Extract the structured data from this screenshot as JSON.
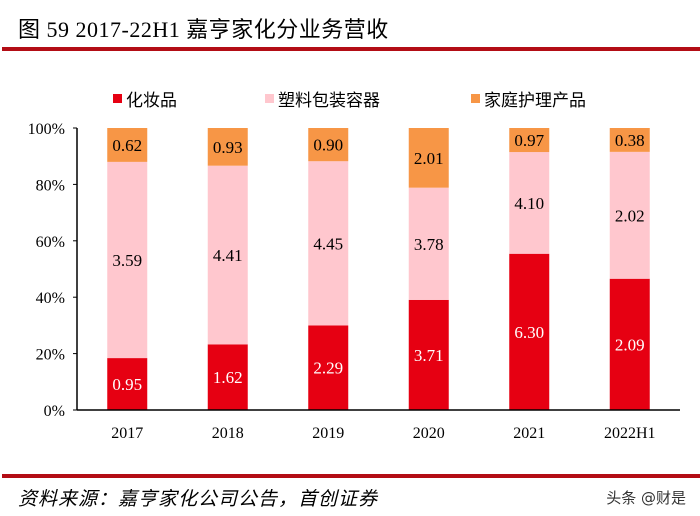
{
  "header": {
    "title": "图  59 2017-22H1 嘉亨家化分业务营收"
  },
  "footer": {
    "source": "资料来源：嘉亨家化公司公告，首创证券",
    "watermark": "头条 @财是"
  },
  "colors": {
    "cosmetics": "#e60012",
    "plastic": "#ffc7ce",
    "household": "#f79646",
    "rule": "#b30d15"
  },
  "chart_data": {
    "type": "bar",
    "stacked": true,
    "normalized": true,
    "title": "2017-22H1 嘉亨家化分业务营收",
    "categories": [
      "2017",
      "2018",
      "2019",
      "2020",
      "2021",
      "2022H1"
    ],
    "series": [
      {
        "name": "化妆品",
        "color": "#e60012",
        "values": [
          0.95,
          1.62,
          2.29,
          3.71,
          6.3,
          2.09
        ],
        "labels": [
          "0.95",
          "1.62",
          "2.29",
          "3.71",
          "6.30",
          "2.09"
        ],
        "label_color": "#ffffff"
      },
      {
        "name": "塑料包装容器",
        "color": "#ffc7ce",
        "values": [
          3.59,
          4.41,
          4.45,
          3.78,
          4.1,
          2.02
        ],
        "labels": [
          "3.59",
          "4.41",
          "4.45",
          "3.78",
          "4.10",
          "2.02"
        ],
        "label_color": "#000000"
      },
      {
        "name": "家庭护理产品",
        "color": "#f79646",
        "values": [
          0.62,
          0.93,
          0.9,
          2.01,
          0.97,
          0.38
        ],
        "labels": [
          "0.62",
          "0.93",
          "0.90",
          "2.01",
          "0.97",
          "0.38"
        ],
        "label_color": "#000000"
      }
    ],
    "xlabel": "",
    "ylabel": "",
    "ylim": [
      0,
      100
    ],
    "yticks": [
      "0%",
      "20%",
      "40%",
      "60%",
      "80%",
      "100%"
    ],
    "ytick_values": [
      0,
      20,
      40,
      60,
      80,
      100
    ],
    "grid": false,
    "legend_position": "top"
  }
}
